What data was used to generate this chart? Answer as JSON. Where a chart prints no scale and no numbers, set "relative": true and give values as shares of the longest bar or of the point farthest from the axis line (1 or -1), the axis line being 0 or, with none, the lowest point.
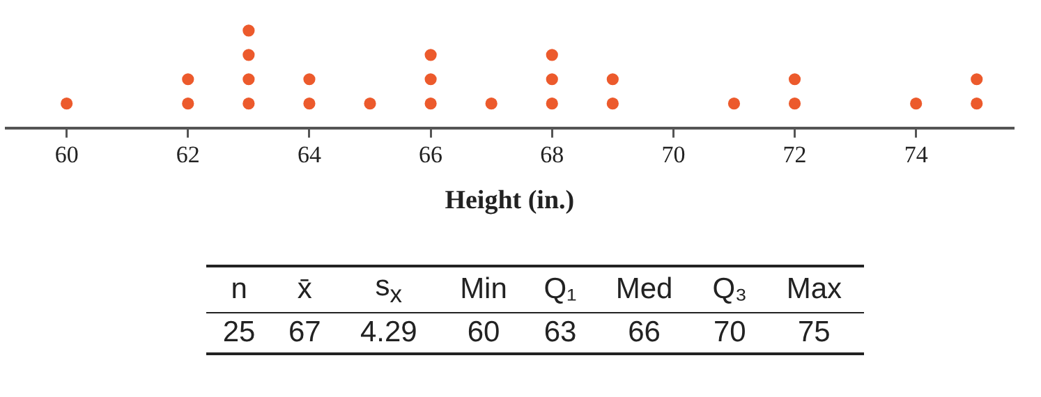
{
  "chart_data": {
    "type": "scatter",
    "xlabel": "Height (in.)",
    "x": [
      60,
      62,
      62,
      63,
      63,
      63,
      63,
      64,
      64,
      65,
      66,
      66,
      66,
      67,
      68,
      68,
      68,
      69,
      69,
      71,
      72,
      72,
      74,
      75,
      75
    ],
    "values": [
      0.25,
      0.25,
      0.5,
      0.25,
      0.5,
      0.75,
      1,
      0.25,
      0.5,
      0.25,
      0.25,
      0.5,
      0.75,
      0.25,
      0.25,
      0.5,
      0.75,
      0.25,
      0.5,
      0.25,
      0.25,
      0.5,
      0.25,
      0.25,
      0.5
    ],
    "relative": true,
    "color": "#ec5a2c",
    "marker": "circle",
    "xlim": [
      59,
      75.6
    ],
    "xticks": [
      60,
      62,
      64,
      66,
      68,
      70,
      72,
      74
    ],
    "tick_labels": "x",
    "grid": false,
    "legend": false,
    "annotations": [
      "n",
      "x̄",
      "s$_{x}$",
      "Min",
      "Q₁",
      "Med",
      "Q₃",
      "Max",
      "25",
      "67",
      "4.29",
      "60",
      "63",
      "66",
      "70",
      "75"
    ]
  }
}
